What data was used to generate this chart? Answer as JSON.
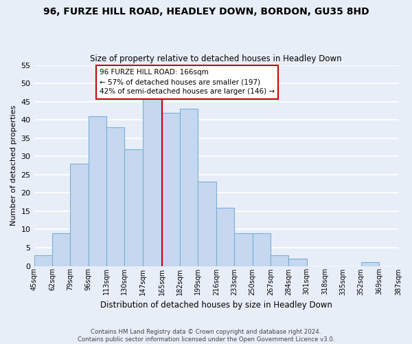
{
  "title": "96, FURZE HILL ROAD, HEADLEY DOWN, BORDON, GU35 8HD",
  "subtitle": "Size of property relative to detached houses in Headley Down",
  "xlabel": "Distribution of detached houses by size in Headley Down",
  "ylabel": "Number of detached properties",
  "bin_edges": [
    45,
    62,
    79,
    96,
    113,
    130,
    147,
    165,
    182,
    199,
    216,
    233,
    250,
    267,
    284,
    301,
    318,
    335,
    352,
    369,
    387
  ],
  "bin_labels": [
    "45sqm",
    "62sqm",
    "79sqm",
    "96sqm",
    "113sqm",
    "130sqm",
    "147sqm",
    "165sqm",
    "182sqm",
    "199sqm",
    "216sqm",
    "233sqm",
    "250sqm",
    "267sqm",
    "284sqm",
    "301sqm",
    "318sqm",
    "335sqm",
    "352sqm",
    "369sqm",
    "387sqm"
  ],
  "counts": [
    3,
    9,
    28,
    41,
    38,
    32,
    46,
    42,
    43,
    23,
    16,
    9,
    9,
    3,
    2,
    0,
    0,
    0,
    1,
    0
  ],
  "bar_color": "#c5d8f0",
  "bar_edge_color": "#7aaed6",
  "vline_x": 165,
  "vline_color": "#cc0000",
  "ylim": [
    0,
    55
  ],
  "yticks": [
    0,
    5,
    10,
    15,
    20,
    25,
    30,
    35,
    40,
    45,
    50,
    55
  ],
  "annotation_title": "96 FURZE HILL ROAD: 166sqm",
  "annotation_line1": "← 57% of detached houses are smaller (197)",
  "annotation_line2": "42% of semi-detached houses are larger (146) →",
  "annotation_box_color": "white",
  "annotation_box_edge": "#cc0000",
  "footer_line1": "Contains HM Land Registry data © Crown copyright and database right 2024.",
  "footer_line2": "Contains public sector information licensed under the Open Government Licence v3.0.",
  "background_color": "#e8eef8",
  "grid_color": "white"
}
